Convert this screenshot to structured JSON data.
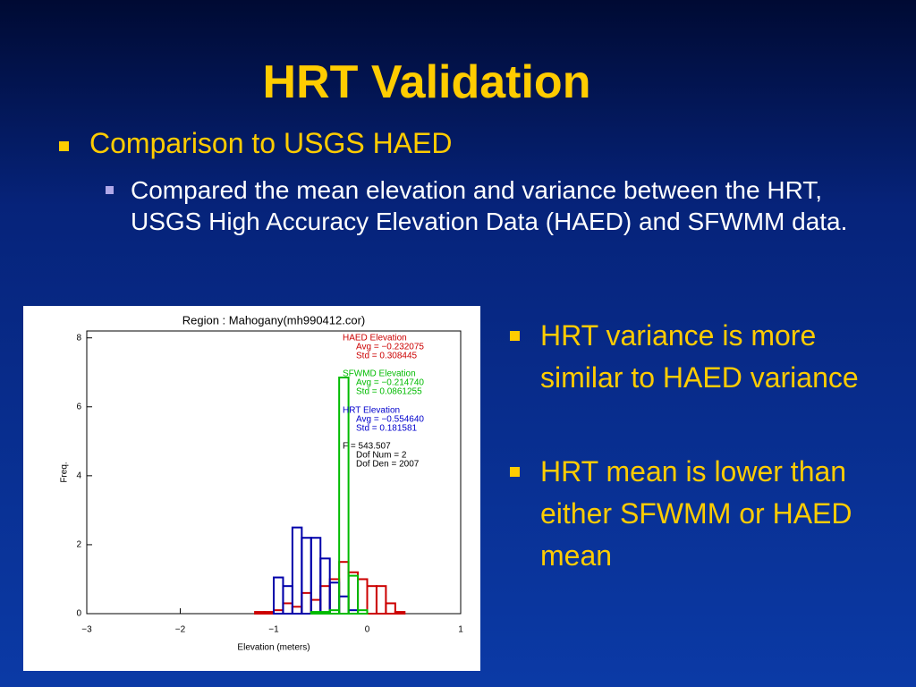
{
  "title": "HRT Validation",
  "bullets": [
    {
      "text": "Comparison to USGS HAED",
      "sub": [
        "Compared the mean elevation and variance between the HRT, USGS High Accuracy Elevation Data (HAED) and SFWMM data."
      ]
    }
  ],
  "right_bullets": [
    "HRT variance is more similar to HAED variance",
    "HRT mean is lower than either SFWMM or HAED mean"
  ],
  "chart_data": {
    "type": "histogram",
    "title": "Region : Mahogany(mh990412.cor)",
    "x_label": "Elevation (meters)",
    "y_label": "Freq.",
    "bins": [
      -1.2,
      -1.1,
      -1.0,
      -0.9,
      -0.8,
      -0.7,
      -0.6,
      -0.5,
      -0.4,
      -0.3,
      -0.2,
      -0.1,
      0.0,
      0.1,
      0.2,
      0.3,
      0.4
    ],
    "series": [
      {
        "color": "#cc0000",
        "values": [
          0.05,
          0.05,
          0.1,
          0.3,
          0.2,
          0.6,
          0.4,
          0.8,
          1.0,
          1.5,
          1.2,
          1.0,
          0.8,
          0.8,
          0.3,
          0.05
        ]
      },
      {
        "color": "#0000aa",
        "values": [
          0,
          0,
          1.05,
          0.8,
          2.5,
          2.2,
          2.2,
          1.6,
          0.9,
          0.5,
          0.1,
          0,
          0,
          0,
          0,
          0
        ]
      },
      {
        "color": "#00bb00",
        "values": [
          0,
          0,
          0,
          0,
          0,
          0,
          0.05,
          0.05,
          0.1,
          6.85,
          1.1,
          0.1,
          0,
          0,
          0,
          0
        ]
      }
    ],
    "xlim": [
      -3,
      1
    ],
    "xticks": [
      {
        "value": -3,
        "label": "−3"
      },
      {
        "value": -2,
        "label": "−2"
      },
      {
        "value": -1,
        "label": "−1"
      },
      0,
      1
    ],
    "ylim": [
      0,
      8.2
    ],
    "yticks": [
      0,
      2,
      4,
      6,
      8
    ],
    "annotations": [
      {
        "color": "#cc0000",
        "lines": [
          "HAED Elevation",
          "Avg =  −0.232075",
          "Std =  0.308445"
        ]
      },
      {
        "color": "#00bb00",
        "lines": [
          "SFWMD Elevation",
          "Avg =  −0.214740",
          "Std =  0.0861255"
        ]
      },
      {
        "color": "#0000cc",
        "lines": [
          "HRT Elevation",
          "Avg =  −0.554640",
          "Std =  0.181581"
        ]
      },
      {
        "color": "#000000",
        "lines": [
          "F =  543.507",
          "Dof Num =  2",
          "Dof Den =  2007"
        ]
      }
    ]
  }
}
